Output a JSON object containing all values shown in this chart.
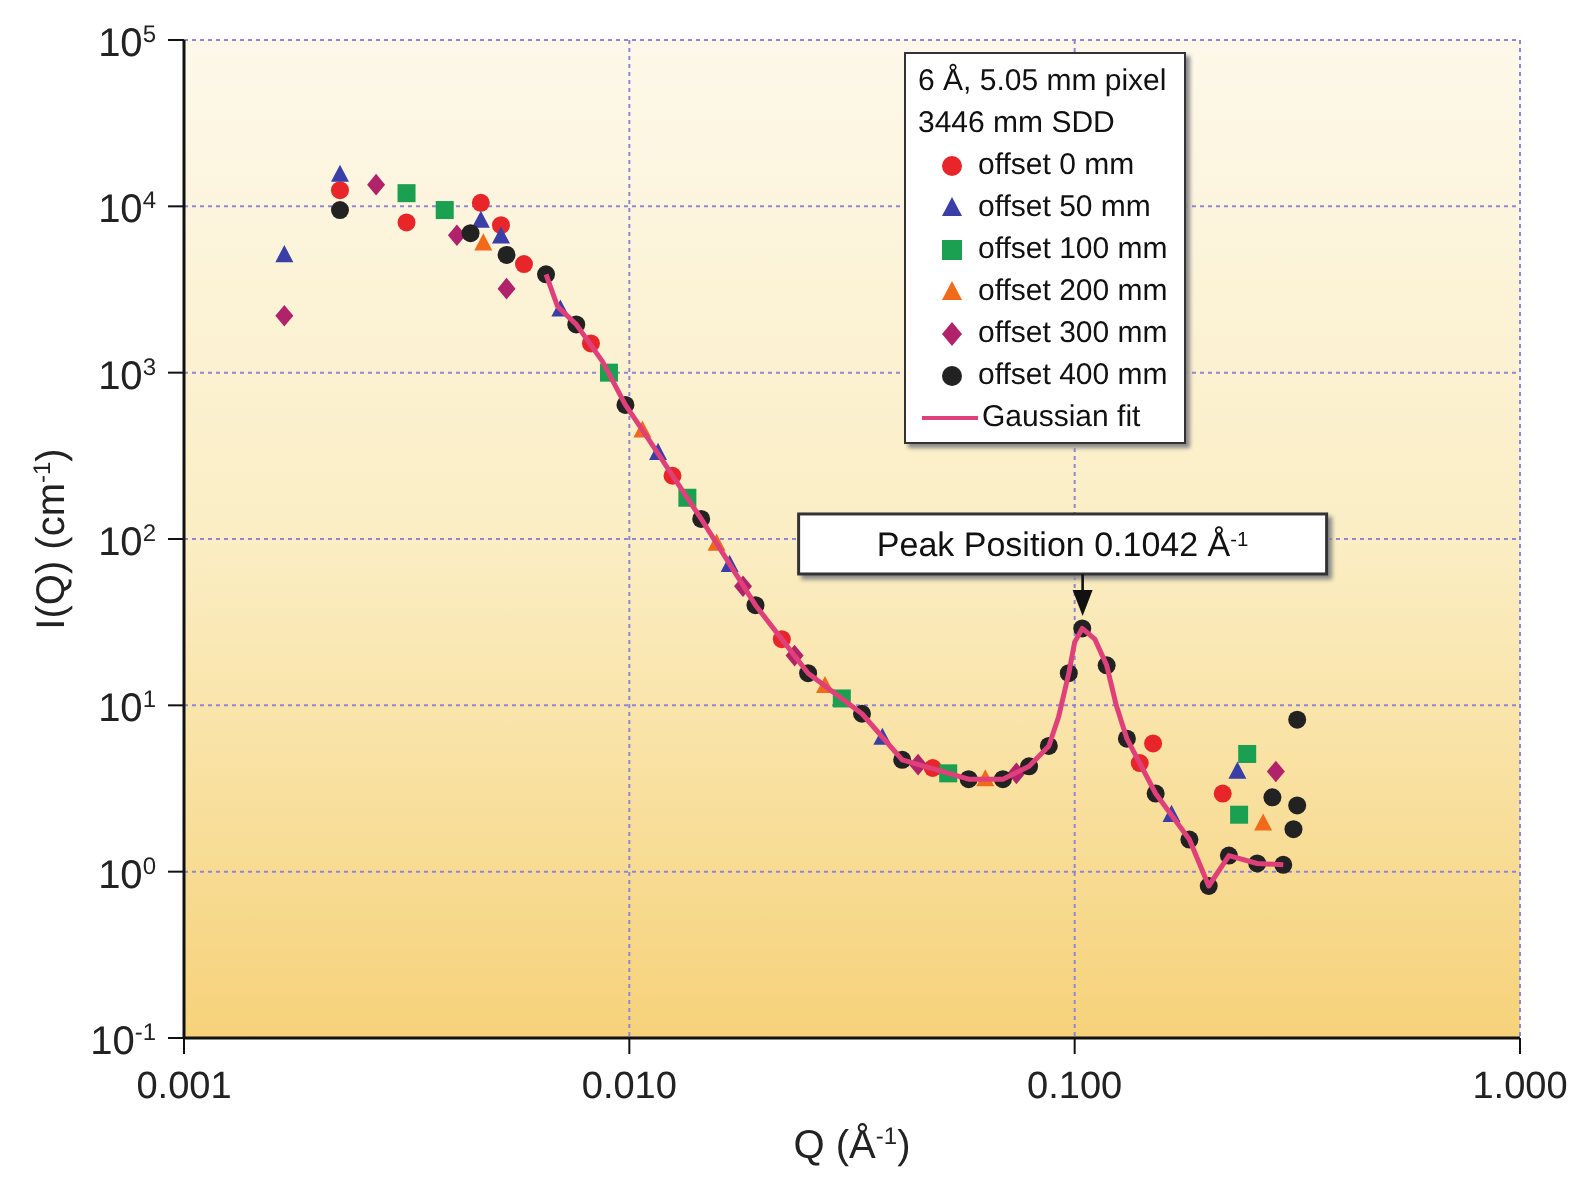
{
  "chart_data": {
    "type": "scatter",
    "xlabel": "Q (Å$^{-1}$)",
    "ylabel": "I(Q) (cm$^{-1}$)",
    "legend_title": "6 Å, 5.05 mm pixel\n3446 mm SDD",
    "log": "xy",
    "grid": true,
    "legend": "top right",
    "xlim": [
      0.001,
      1
    ],
    "xticks": [
      {
        "value": 0.001,
        "label": "0.001"
      },
      {
        "value": 0.01,
        "label": "0.010"
      },
      {
        "value": 0.1,
        "label": "0.100"
      },
      {
        "value": 1,
        "label": "1.000"
      }
    ],
    "ylim": [
      0.1,
      100000
    ],
    "yticks": [
      {
        "value": 0.1,
        "label": "10$^{-1}$"
      },
      {
        "value": 1,
        "label": "10$^{0}$"
      },
      {
        "value": 10,
        "label": "10$^{1}$"
      },
      {
        "value": 100,
        "label": "10$^{2}$"
      },
      {
        "value": 1000,
        "label": "10$^{3}$"
      },
      {
        "value": 10000,
        "label": "10$^{4}$"
      },
      {
        "value": 100000,
        "label": "10$^{5}$"
      }
    ],
    "annotations": [
      {
        "text": "Peak Position 0.1042 Å$^{-1}$",
        "x": 0.1042,
        "y": 30
      }
    ],
    "series": [
      {
        "name": "offset 0 mm",
        "color": "#e8262a",
        "marker": "circle",
        "x": [
          0.00224,
          0.00316,
          0.00464,
          0.00515,
          0.0058,
          0.0082,
          0.0125,
          0.022,
          0.048,
          0.14,
          0.15,
          0.215
        ],
        "values": [
          12500,
          8000,
          10500,
          7700,
          4500,
          1500,
          240,
          25,
          4.2,
          4.5,
          5.9,
          2.95
        ]
      },
      {
        "name": "offset 50 mm",
        "color": "#3a3fa8",
        "marker": "triangle",
        "x": [
          0.00168,
          0.00224,
          0.00464,
          0.00515,
          0.007,
          0.0116,
          0.0168,
          0.037,
          0.165,
          0.232
        ],
        "values": [
          5100,
          15500,
          8200,
          6600,
          2400,
          330,
          70,
          6.4,
          2.2,
          4.0
        ]
      },
      {
        "name": "offset 100 mm",
        "color": "#1aa050",
        "marker": "square",
        "x": [
          0.00316,
          0.00385,
          0.009,
          0.0135,
          0.03,
          0.052,
          0.234,
          0.244
        ],
        "values": [
          12000,
          9500,
          1000,
          177,
          11,
          3.9,
          2.2,
          5.1
        ]
      },
      {
        "name": "offset 200 mm",
        "color": "#f06a1a",
        "marker": "triangle",
        "x": [
          0.0047,
          0.0107,
          0.0157,
          0.0275,
          0.063,
          0.265
        ],
        "values": [
          6000,
          450,
          94,
          13.1,
          3.6,
          1.95
        ]
      },
      {
        "name": "offset 300 mm",
        "color": "#b0226a",
        "marker": "diamond",
        "x": [
          0.00168,
          0.0027,
          0.0041,
          0.0053,
          0.018,
          0.0235,
          0.0445,
          0.074,
          0.283
        ],
        "values": [
          2200,
          13500,
          6700,
          3200,
          52,
          19.9,
          4.4,
          3.9,
          4.0
        ]
      },
      {
        "name": "offset 400 mm",
        "color": "#222222",
        "marker": "circle",
        "x": [
          0.00224,
          0.0044,
          0.0053,
          0.0065,
          0.0076,
          0.0098,
          0.0145,
          0.0192,
          0.0252,
          0.0333,
          0.041,
          0.0578,
          0.069,
          0.079,
          0.0875,
          0.097,
          0.104,
          0.118,
          0.131,
          0.152,
          0.181,
          0.2,
          0.222,
          0.257,
          0.278,
          0.294,
          0.31,
          0.316,
          0.316
        ],
        "values": [
          9500,
          6900,
          5100,
          3900,
          1950,
          640,
          132,
          40,
          15.6,
          8.9,
          4.7,
          3.6,
          3.6,
          4.3,
          5.7,
          15.6,
          29,
          17.4,
          6.3,
          2.95,
          1.56,
          0.82,
          1.25,
          1.12,
          2.8,
          1.1,
          1.8,
          2.5,
          8.2
        ]
      },
      {
        "name": "Gaussian fit",
        "type": "line",
        "color": "#e0407a",
        "marker": "none",
        "x": [
          0.0065,
          0.0069,
          0.0076,
          0.0087,
          0.0098,
          0.0109,
          0.0145,
          0.0192,
          0.0252,
          0.0333,
          0.041,
          0.0578,
          0.069,
          0.079,
          0.0875,
          0.092,
          0.097,
          0.1,
          0.104,
          0.111,
          0.118,
          0.124,
          0.131,
          0.152,
          0.181,
          0.2,
          0.222,
          0.257,
          0.294
        ],
        "values": [
          3900,
          2500,
          1950,
          1170,
          640,
          420,
          132,
          40,
          15.6,
          8.9,
          4.7,
          3.6,
          3.6,
          4.3,
          5.7,
          8.5,
          15.6,
          24,
          29,
          25,
          17.4,
          10,
          6.3,
          2.95,
          1.56,
          0.82,
          1.25,
          1.12,
          1.1
        ]
      }
    ]
  }
}
